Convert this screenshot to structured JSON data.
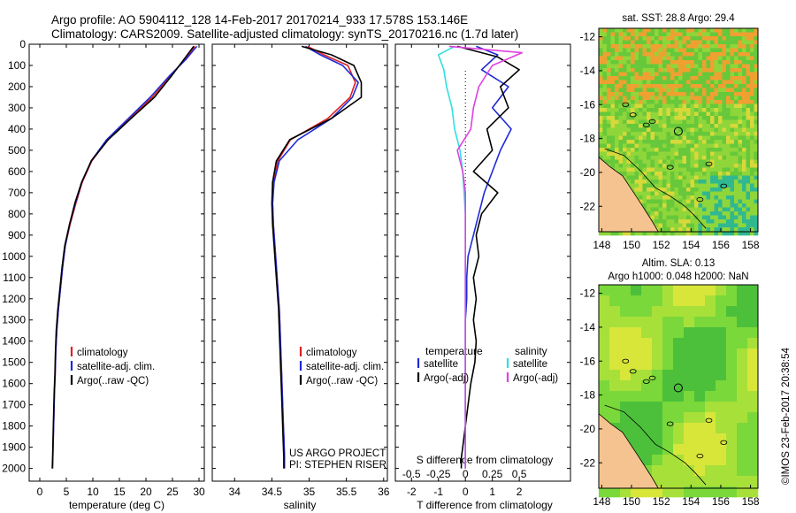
{
  "header": {
    "line1": "Argo profile: AO 5904112_128 14-Feb-2017 20170214_933 17.578S 153.146E",
    "line2": "Climatology: CARS2009. Satellite-adjusted climatology: synTS_20170216.nc (1.7d later)"
  },
  "colors": {
    "climatology": "#e02020",
    "satellite": "#1f2ad8",
    "argo": "#000000",
    "sal_satellite": "#30e0e0",
    "sal_argo": "#e040e0",
    "land": "#f5c38f"
  },
  "chart_data": [
    {
      "type": "line",
      "xlabel": "temperature (deg C)",
      "ylabel": "",
      "xlim": [
        -2,
        31
      ],
      "ylim": [
        2060,
        0
      ],
      "xticks": [
        0,
        5,
        10,
        15,
        20,
        25,
        30
      ],
      "yticks": [
        0,
        100,
        200,
        300,
        400,
        500,
        600,
        700,
        800,
        900,
        1000,
        1100,
        1200,
        1300,
        1400,
        1500,
        1600,
        1700,
        1800,
        1900,
        2000
      ],
      "legend": [
        "climatology",
        "satellite-adj. clim.",
        "Argo(..raw -QC)"
      ],
      "series": [
        {
          "name": "climatology",
          "x": [
            29.2,
            28.6,
            27.4,
            24.6,
            21.2,
            17.0,
            12.8,
            9.8,
            8.0,
            6.8,
            5.7,
            4.8,
            4.3,
            3.9,
            3.5,
            3.2,
            3.0,
            2.9,
            2.75,
            2.65,
            2.55,
            2.45,
            2.4
          ],
          "y": [
            10,
            30,
            70,
            150,
            250,
            350,
            450,
            550,
            650,
            750,
            850,
            950,
            1050,
            1150,
            1250,
            1350,
            1450,
            1550,
            1650,
            1750,
            1850,
            1950,
            2000
          ]
        },
        {
          "name": "satellite-adj. clim.",
          "x": [
            29.6,
            28.9,
            27.6,
            24.4,
            20.8,
            16.7,
            12.6,
            9.7,
            7.9,
            6.7,
            5.6,
            4.8,
            4.3,
            3.9,
            3.5,
            3.2,
            3.0,
            2.9,
            2.75,
            2.65,
            2.55,
            2.45,
            2.4
          ],
          "y": [
            10,
            30,
            70,
            150,
            250,
            350,
            450,
            550,
            650,
            750,
            850,
            950,
            1050,
            1150,
            1250,
            1350,
            1450,
            1550,
            1650,
            1750,
            1850,
            1950,
            2000
          ]
        },
        {
          "name": "Argo(..raw -QC)",
          "x": [
            29.0,
            28.4,
            27.2,
            24.8,
            21.6,
            17.2,
            12.9,
            9.7,
            7.9,
            6.6,
            5.6,
            4.7,
            4.2,
            3.8,
            3.4,
            3.1,
            2.95,
            2.85,
            2.7,
            2.6,
            2.5,
            2.42,
            2.35
          ],
          "y": [
            10,
            30,
            70,
            150,
            250,
            350,
            450,
            550,
            650,
            750,
            850,
            950,
            1050,
            1150,
            1250,
            1350,
            1450,
            1550,
            1650,
            1750,
            1850,
            1950,
            2000
          ]
        }
      ]
    },
    {
      "type": "line",
      "xlabel": "salinity",
      "ylabel": "",
      "xlim": [
        33.7,
        36.05
      ],
      "ylim": [
        2060,
        0
      ],
      "xticks": [
        34,
        34.5,
        35,
        35.5,
        36
      ],
      "legend": [
        "climatology",
        "satellite-adj. clim.",
        "Argo(..raw -QC)"
      ],
      "series": [
        {
          "name": "climatology",
          "x": [
            34.98,
            35.2,
            35.52,
            35.62,
            35.55,
            35.25,
            34.75,
            34.58,
            34.52,
            34.51,
            34.52,
            34.54,
            34.56,
            34.58,
            34.6,
            34.61,
            34.62,
            34.63,
            34.64,
            34.65,
            34.66,
            34.67,
            34.67
          ],
          "y": [
            10,
            50,
            100,
            180,
            250,
            350,
            450,
            550,
            650,
            750,
            850,
            950,
            1050,
            1150,
            1250,
            1350,
            1450,
            1550,
            1650,
            1750,
            1850,
            1950,
            2000
          ]
        },
        {
          "name": "satellite-adj. clim.",
          "x": [
            34.95,
            35.15,
            35.45,
            35.66,
            35.58,
            35.3,
            34.85,
            34.6,
            34.53,
            34.51,
            34.52,
            34.54,
            34.56,
            34.58,
            34.6,
            34.61,
            34.62,
            34.63,
            34.64,
            34.65,
            34.66,
            34.67,
            34.67
          ],
          "y": [
            10,
            50,
            100,
            180,
            250,
            350,
            450,
            550,
            650,
            750,
            850,
            950,
            1050,
            1150,
            1250,
            1350,
            1450,
            1550,
            1650,
            1750,
            1850,
            1950,
            2000
          ]
        },
        {
          "name": "Argo(..raw -QC)",
          "x": [
            34.9,
            35.3,
            35.6,
            35.7,
            35.7,
            35.3,
            34.74,
            34.56,
            34.51,
            34.5,
            34.51,
            34.53,
            34.55,
            34.57,
            34.59,
            34.6,
            34.61,
            34.62,
            34.63,
            34.64,
            34.65,
            34.66,
            34.66
          ],
          "y": [
            10,
            50,
            100,
            180,
            250,
            350,
            450,
            550,
            650,
            750,
            850,
            950,
            1050,
            1150,
            1250,
            1350,
            1450,
            1550,
            1650,
            1750,
            1850,
            1950,
            2000
          ]
        }
      ],
      "annotations": [
        "US ARGO PROJECT",
        "PI: STEPHEN RISER"
      ]
    },
    {
      "type": "line",
      "xlabel": "T difference from climatology",
      "title": "S difference from climatology",
      "xlim": [
        -2.6,
        3.9
      ],
      "ylim": [
        2060,
        0
      ],
      "xticks": [
        -2,
        -1,
        0,
        1,
        2
      ],
      "top_ticks": [
        "-0.5",
        "-0.25",
        "0",
        "0.25",
        "0.5"
      ],
      "top_tick_positions": [
        -2,
        -1,
        0,
        1,
        2
      ],
      "legend_titles": [
        "temperature",
        "salinity"
      ],
      "legend": [
        "satellite",
        "Argo(-adj)",
        "satellite",
        "Argo(-adj)"
      ],
      "series": [
        {
          "name": "temperature satellite",
          "x": [
            0.4,
            1.2,
            0.6,
            1.6,
            1.0,
            1.7,
            1.3,
            1.0,
            0.7,
            0.5,
            0.3,
            0.1,
            0.05,
            0.05,
            0.0,
            0.0,
            0.0,
            0.0,
            0.0,
            0.0,
            0.0,
            0.0,
            0.0
          ],
          "y": [
            10,
            50,
            120,
            200,
            300,
            400,
            500,
            600,
            700,
            800,
            900,
            1000,
            1100,
            1200,
            1300,
            1400,
            1500,
            1600,
            1700,
            1800,
            1900,
            1950,
            2000
          ]
        },
        {
          "name": "temperature Argo(-adj)",
          "x": [
            -0.3,
            1.2,
            2.0,
            1.3,
            1.6,
            0.8,
            1.0,
            0.3,
            1.2,
            0.6,
            0.4,
            0.5,
            0.3,
            0.4,
            0.3,
            0.4,
            0.35,
            0.2,
            0.1,
            0.0,
            -0.1,
            -0.15,
            -0.15
          ],
          "y": [
            10,
            60,
            120,
            200,
            300,
            400,
            500,
            600,
            700,
            800,
            900,
            1000,
            1100,
            1200,
            1300,
            1400,
            1500,
            1600,
            1700,
            1800,
            1900,
            1950,
            2000
          ]
        },
        {
          "name": "salinity satellite",
          "x": [
            -0.4,
            -1.0,
            -0.8,
            -0.7,
            -0.5,
            -0.4,
            -0.2,
            -0.1,
            -0.05,
            0.0,
            0.0,
            0.0,
            0.0,
            0.0,
            0.0,
            0.0,
            0.0,
            0.0,
            0.0,
            0.0,
            0.0,
            0.0,
            0.0
          ],
          "y": [
            10,
            50,
            120,
            200,
            300,
            400,
            500,
            600,
            700,
            800,
            900,
            1000,
            1100,
            1200,
            1300,
            1400,
            1500,
            1600,
            1700,
            1800,
            1900,
            1950,
            2000
          ]
        },
        {
          "name": "salinity Argo(-adj)",
          "x": [
            -0.6,
            2.1,
            1.0,
            0.5,
            0.3,
            0.2,
            -0.3,
            -0.1,
            0.0,
            0.0,
            0.0,
            0.0,
            0.0,
            0.0,
            0.0,
            0.0,
            0.0,
            0.0,
            0.0,
            0.0,
            0.0,
            0.0,
            0.0
          ],
          "y": [
            10,
            40,
            100,
            200,
            300,
            400,
            500,
            600,
            700,
            800,
            900,
            1000,
            1100,
            1200,
            1300,
            1400,
            1500,
            1600,
            1700,
            1800,
            1900,
            1950,
            2000
          ]
        }
      ]
    },
    {
      "type": "heatmap",
      "title": "sat. SST: 28.8  Argo: 29.4",
      "xlim": [
        147.8,
        158.5
      ],
      "ylim": [
        -23.5,
        -11.5
      ],
      "xticks": [
        148,
        150,
        152,
        154,
        156,
        158
      ],
      "yticks": [
        -12,
        -14,
        -16,
        -18,
        -20,
        -22
      ],
      "marker": {
        "lon": 153.146,
        "lat": -17.578
      }
    },
    {
      "type": "heatmap",
      "title": "Altim. SLA: 0.13",
      "subtitle": "Argo h1000: 0.048  h2000: NaN",
      "xlim": [
        147.8,
        158.5
      ],
      "ylim": [
        -23.5,
        -11.5
      ],
      "xticks": [
        148,
        150,
        152,
        154,
        156,
        158
      ],
      "yticks": [
        -12,
        -14,
        -16,
        -18,
        -20,
        -22
      ],
      "marker": {
        "lon": 153.146,
        "lat": -17.578
      }
    }
  ],
  "side_text": "©IMOS 23-Feb-2017 20:38:54"
}
